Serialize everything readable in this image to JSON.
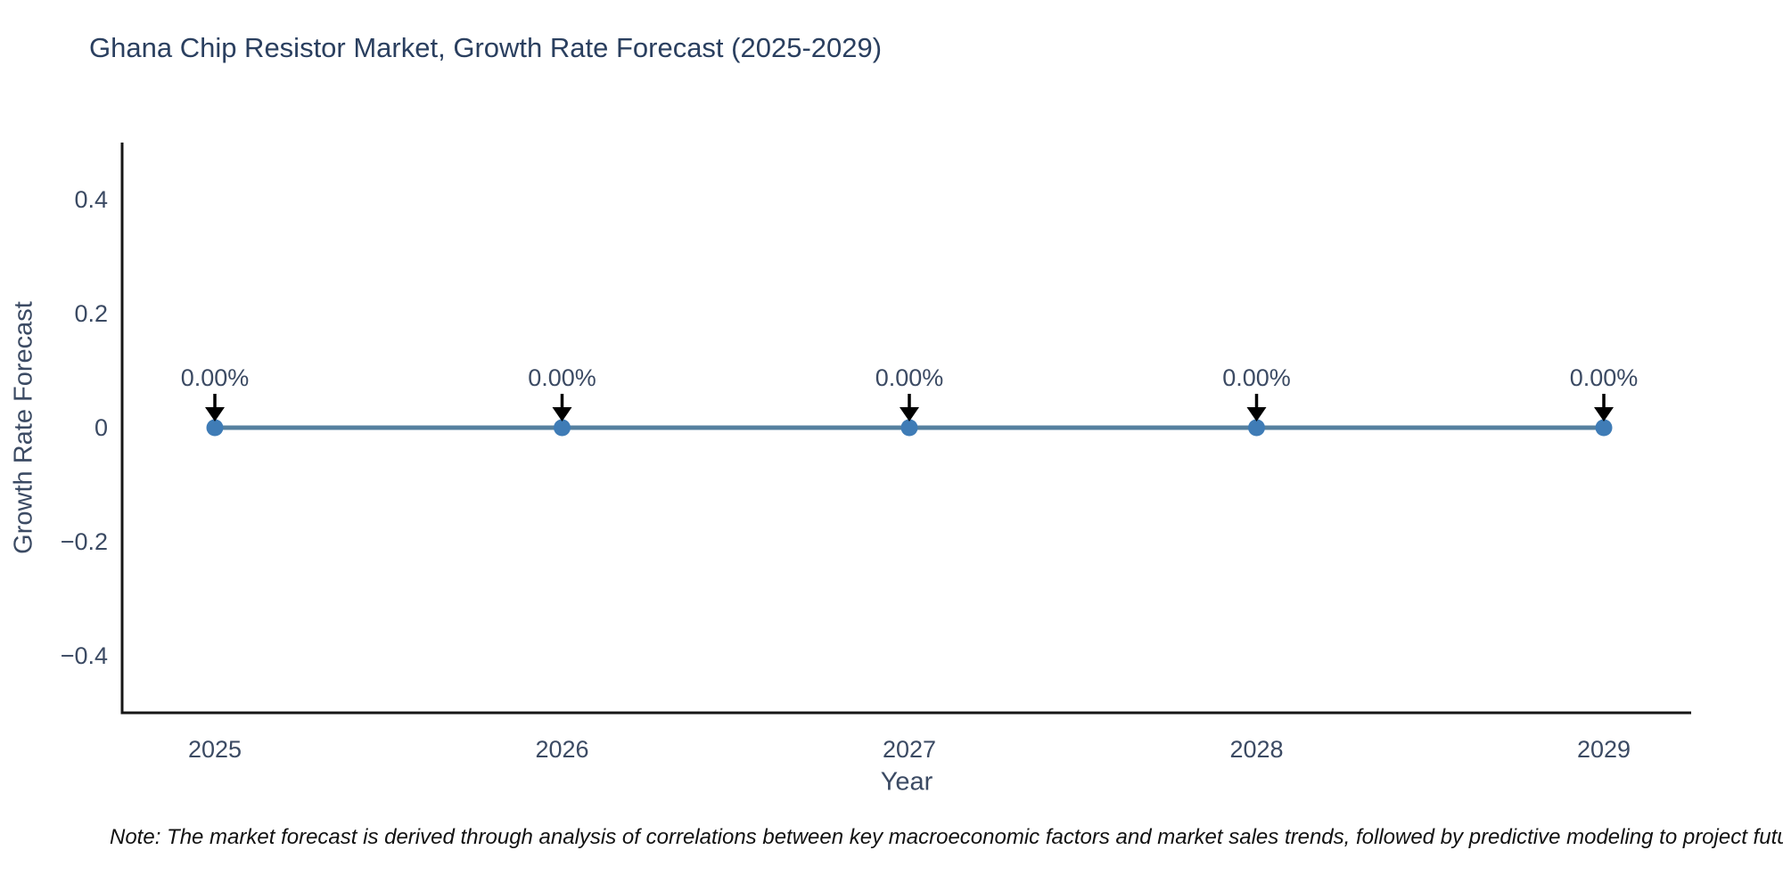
{
  "title": {
    "text": "Ghana Chip Resistor Market, Growth Rate Forecast (2025-2029)",
    "color": "#2a3f5f"
  },
  "note": {
    "text": "Note: The market forecast is derived through analysis of correlations between key macroeconomic factors and market sales trends, followed by predictive modeling to project future sa"
  },
  "chart_data": {
    "type": "line",
    "categories": [
      "2025",
      "2026",
      "2027",
      "2028",
      "2029"
    ],
    "series": [
      {
        "name": "Growth Rate Forecast",
        "values": [
          0,
          0,
          0,
          0,
          0
        ]
      }
    ],
    "point_labels": [
      "0.00%",
      "0.00%",
      "0.00%",
      "0.00%",
      "0.00%"
    ],
    "title": "Ghana Chip Resistor Market, Growth Rate Forecast (2025-2029)",
    "xlabel": "Year",
    "ylabel": "Growth Rate Forecast",
    "ylim": [
      -0.5,
      0.5
    ],
    "yticks": [
      0.4,
      0.2,
      0,
      -0.2,
      -0.4
    ],
    "ytick_labels": [
      "0.4",
      "0.2",
      "0",
      "−0.2",
      "−0.4"
    ],
    "grid": false,
    "legend_position": "none",
    "line_color": "#55809f",
    "marker_color": "#3f7cb6",
    "axis_color": "#161616",
    "annotation_arrow_color": "#000000"
  }
}
